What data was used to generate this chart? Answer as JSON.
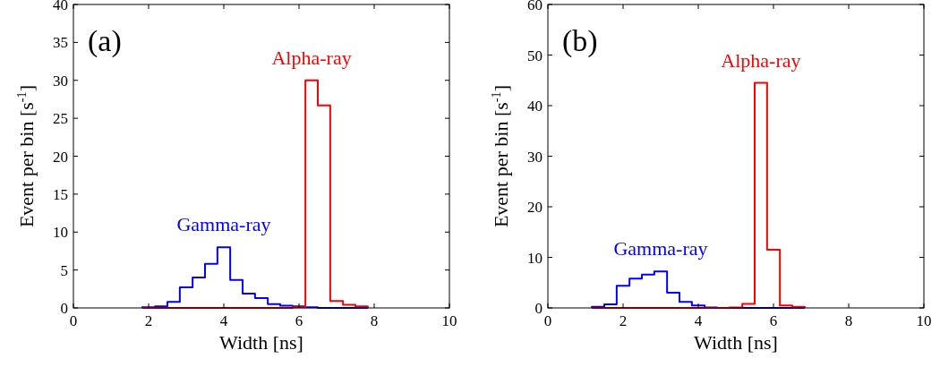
{
  "chart_data": [
    {
      "type": "histogram",
      "title": "(a)",
      "xlabel": "Width [ns]",
      "ylabel": "Event per bin [s$^{-1}$]",
      "xlim": [
        0,
        10
      ],
      "xticks": [
        0,
        2,
        4,
        6,
        8,
        10
      ],
      "ylim": [
        0,
        40
      ],
      "yticks": [
        0,
        5,
        10,
        15,
        20,
        25,
        30,
        35,
        40
      ],
      "grid": false,
      "legend": false,
      "bins": [
        1.83,
        2.17,
        2.5,
        2.83,
        3.17,
        3.5,
        3.83,
        4.17,
        4.5,
        4.83,
        5.17,
        5.5,
        5.83,
        6.17,
        6.5,
        6.83,
        7.17,
        7.5,
        7.83
      ],
      "series": [
        {
          "name": "Gamma-ray",
          "color": "#0000ff",
          "values": [
            0.1,
            0.2,
            0.8,
            2.7,
            4.0,
            5.8,
            8.0,
            3.7,
            1.9,
            1.3,
            0.5,
            0.3,
            0.2,
            0.1,
            0,
            0,
            0,
            0
          ]
        },
        {
          "name": "Alpha-ray",
          "color": "#ff0000",
          "values": [
            0,
            0,
            0,
            0,
            0,
            0,
            0,
            0,
            0,
            0,
            0,
            0,
            0.1,
            30,
            26.7,
            0.9,
            0.4,
            0.2
          ]
        }
      ]
    },
    {
      "type": "histogram",
      "title": "(b)",
      "xlabel": "Width [ns]",
      "ylabel": "Event per bin [s$^{-1}$]",
      "xlim": [
        0,
        10
      ],
      "xticks": [
        0,
        2,
        4,
        6,
        8,
        10
      ],
      "ylim": [
        0,
        60
      ],
      "yticks": [
        0,
        10,
        20,
        30,
        40,
        50,
        60
      ],
      "grid": false,
      "legend": false,
      "bins": [
        1.17,
        1.5,
        1.83,
        2.17,
        2.5,
        2.83,
        3.17,
        3.5,
        3.83,
        4.17,
        4.5,
        4.83,
        5.17,
        5.5,
        5.83,
        6.17,
        6.5,
        6.83
      ],
      "series": [
        {
          "name": "Gamma-ray",
          "color": "#0000ff",
          "values": [
            0.2,
            0.7,
            4.4,
            5.8,
            6.6,
            7.2,
            3.0,
            1.2,
            0.5,
            0.1,
            0,
            0,
            0,
            0,
            0,
            0,
            0
          ]
        },
        {
          "name": "Alpha-ray",
          "color": "#ff0000",
          "values": [
            0,
            0,
            0,
            0,
            0,
            0,
            0,
            0,
            0,
            0,
            0,
            0.1,
            0.8,
            44.5,
            11.5,
            0.5,
            0.2
          ]
        }
      ]
    }
  ]
}
